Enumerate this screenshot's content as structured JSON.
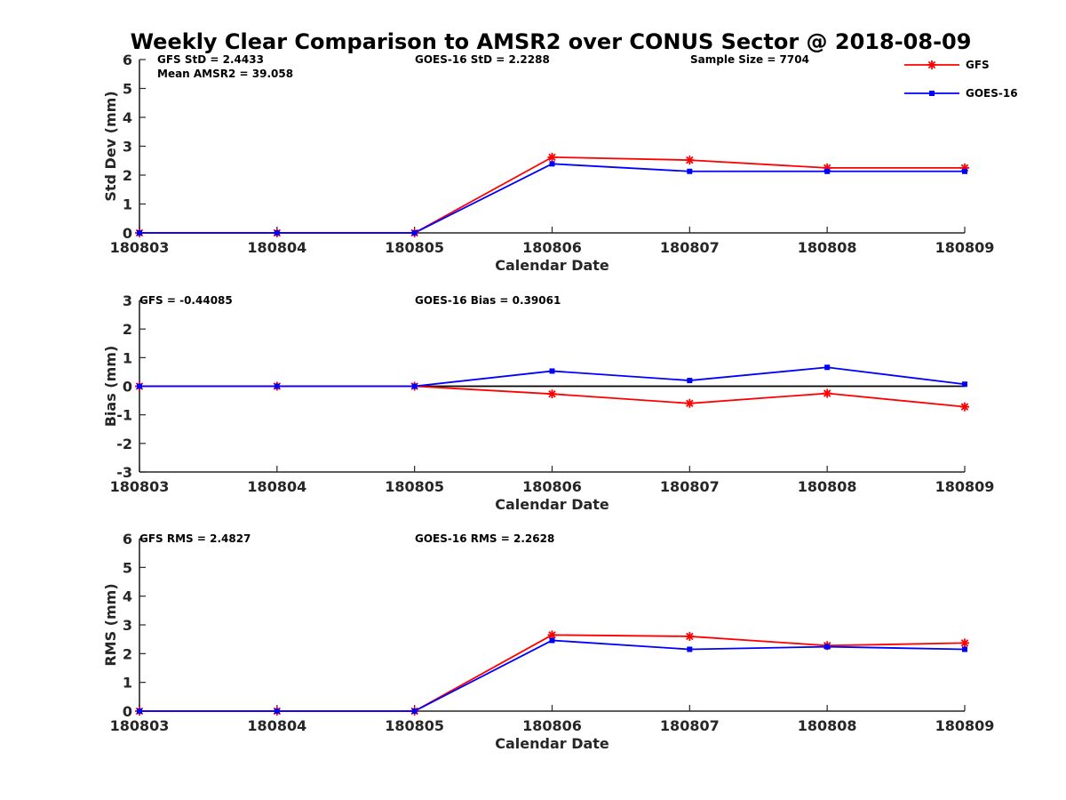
{
  "figure_title": "Weekly Clear Comparison to AMSR2 over CONUS Sector @ 2018-08-09",
  "legend": {
    "items": [
      {
        "label": "GFS",
        "color": "#ff0000",
        "marker": "asterisk"
      },
      {
        "label": "GOES-16",
        "color": "#0000ff",
        "marker": "square"
      }
    ]
  },
  "chart_data": [
    {
      "type": "line",
      "title": "",
      "xlabel": "Calendar Date",
      "ylabel": "Std Dev (mm)",
      "categories": [
        "180803",
        "180804",
        "180805",
        "180806",
        "180807",
        "180808",
        "180809"
      ],
      "ylim": [
        0,
        6
      ],
      "yticks": [
        "0",
        "1",
        "2",
        "3",
        "4",
        "5",
        "6"
      ],
      "zero_line": false,
      "series": [
        {
          "name": "GFS",
          "color": "#ff0000",
          "marker": "asterisk",
          "values": [
            0,
            0,
            0,
            2.62,
            2.52,
            2.25,
            2.25
          ]
        },
        {
          "name": "GOES-16",
          "color": "#0000ff",
          "marker": "square",
          "values": [
            0,
            0,
            0,
            2.39,
            2.13,
            2.13,
            2.13
          ]
        }
      ],
      "annotations": [
        {
          "text": "GFS StD = 2.4433"
        },
        {
          "text": "Mean AMSR2 = 39.058"
        },
        {
          "text": "GOES-16 StD = 2.2288"
        },
        {
          "text": "Sample Size = 7704"
        }
      ]
    },
    {
      "type": "line",
      "title": "",
      "xlabel": "Calendar Date",
      "ylabel": "Bias (mm)",
      "categories": [
        "180803",
        "180804",
        "180805",
        "180806",
        "180807",
        "180808",
        "180809"
      ],
      "ylim": [
        -3,
        3
      ],
      "yticks": [
        "-3",
        "-2",
        "-1",
        "0",
        "1",
        "2",
        "3"
      ],
      "zero_line": true,
      "series": [
        {
          "name": "GFS",
          "color": "#ff0000",
          "marker": "asterisk",
          "values": [
            0,
            0,
            0,
            -0.27,
            -0.6,
            -0.25,
            -0.72
          ]
        },
        {
          "name": "GOES-16",
          "color": "#0000ff",
          "marker": "square",
          "values": [
            0,
            0,
            0,
            0.53,
            0.2,
            0.66,
            0.07
          ]
        }
      ],
      "annotations": [
        {
          "text": "GFS = -0.44085"
        },
        {
          "text": "GOES-16 Bias  = 0.39061"
        }
      ]
    },
    {
      "type": "line",
      "title": "",
      "xlabel": "Calendar Date",
      "ylabel": "RMS (mm)",
      "categories": [
        "180803",
        "180804",
        "180805",
        "180806",
        "180807",
        "180808",
        "180809"
      ],
      "ylim": [
        0,
        6
      ],
      "yticks": [
        "0",
        "1",
        "2",
        "3",
        "4",
        "5",
        "6"
      ],
      "zero_line": false,
      "series": [
        {
          "name": "GFS",
          "color": "#ff0000",
          "marker": "asterisk",
          "values": [
            0,
            0,
            0,
            2.65,
            2.6,
            2.28,
            2.37
          ]
        },
        {
          "name": "GOES-16",
          "color": "#0000ff",
          "marker": "square",
          "values": [
            0,
            0,
            0,
            2.46,
            2.15,
            2.24,
            2.15
          ]
        }
      ],
      "annotations": [
        {
          "text": "GFS RMS = 2.4827"
        },
        {
          "text": "GOES-16 RMS = 2.2628"
        }
      ]
    }
  ]
}
